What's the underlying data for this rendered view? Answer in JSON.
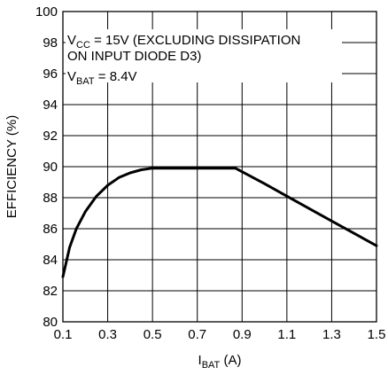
{
  "chart_data": {
    "type": "line",
    "xlabel_main": "I",
    "xlabel_sub": "BAT",
    "xlabel_unit": " (A)",
    "ylabel": "EFFICIENCY (%)",
    "xlim": [
      0.1,
      1.5
    ],
    "ylim": [
      80,
      100
    ],
    "x_ticks": [
      "0.1",
      "0.3",
      "0.5",
      "0.7",
      "0.9",
      "1.1",
      "1.3",
      "1.5"
    ],
    "y_ticks": [
      "80",
      "82",
      "84",
      "86",
      "88",
      "90",
      "92",
      "94",
      "96",
      "98",
      "100"
    ],
    "x_tick_values": [
      0.1,
      0.3,
      0.5,
      0.7,
      0.9,
      1.1,
      1.3,
      1.5
    ],
    "y_tick_values": [
      80,
      82,
      84,
      86,
      88,
      90,
      92,
      94,
      96,
      98,
      100
    ],
    "grid": true,
    "annotations": {
      "line1_main": "V",
      "line1_sub": "CC",
      "line1_rest": " = 15V (EXCLUDING DISSIPATION",
      "line2": "ON INPUT DIODE D3)",
      "line3_main": "V",
      "line3_sub": "BAT",
      "line3_rest": " = 8.4V"
    },
    "series": [
      {
        "x": [
          0.1,
          0.13,
          0.16,
          0.2,
          0.25,
          0.3,
          0.35,
          0.4,
          0.45,
          0.5,
          0.6,
          0.7,
          0.8,
          0.87,
          1.0,
          1.1,
          1.2,
          1.3,
          1.4,
          1.5
        ],
        "y": [
          82.9,
          84.8,
          86.0,
          87.1,
          88.1,
          88.8,
          89.3,
          89.6,
          89.8,
          89.9,
          89.9,
          89.9,
          89.9,
          89.9,
          88.9,
          88.1,
          87.3,
          86.5,
          85.7,
          84.9
        ]
      }
    ]
  }
}
